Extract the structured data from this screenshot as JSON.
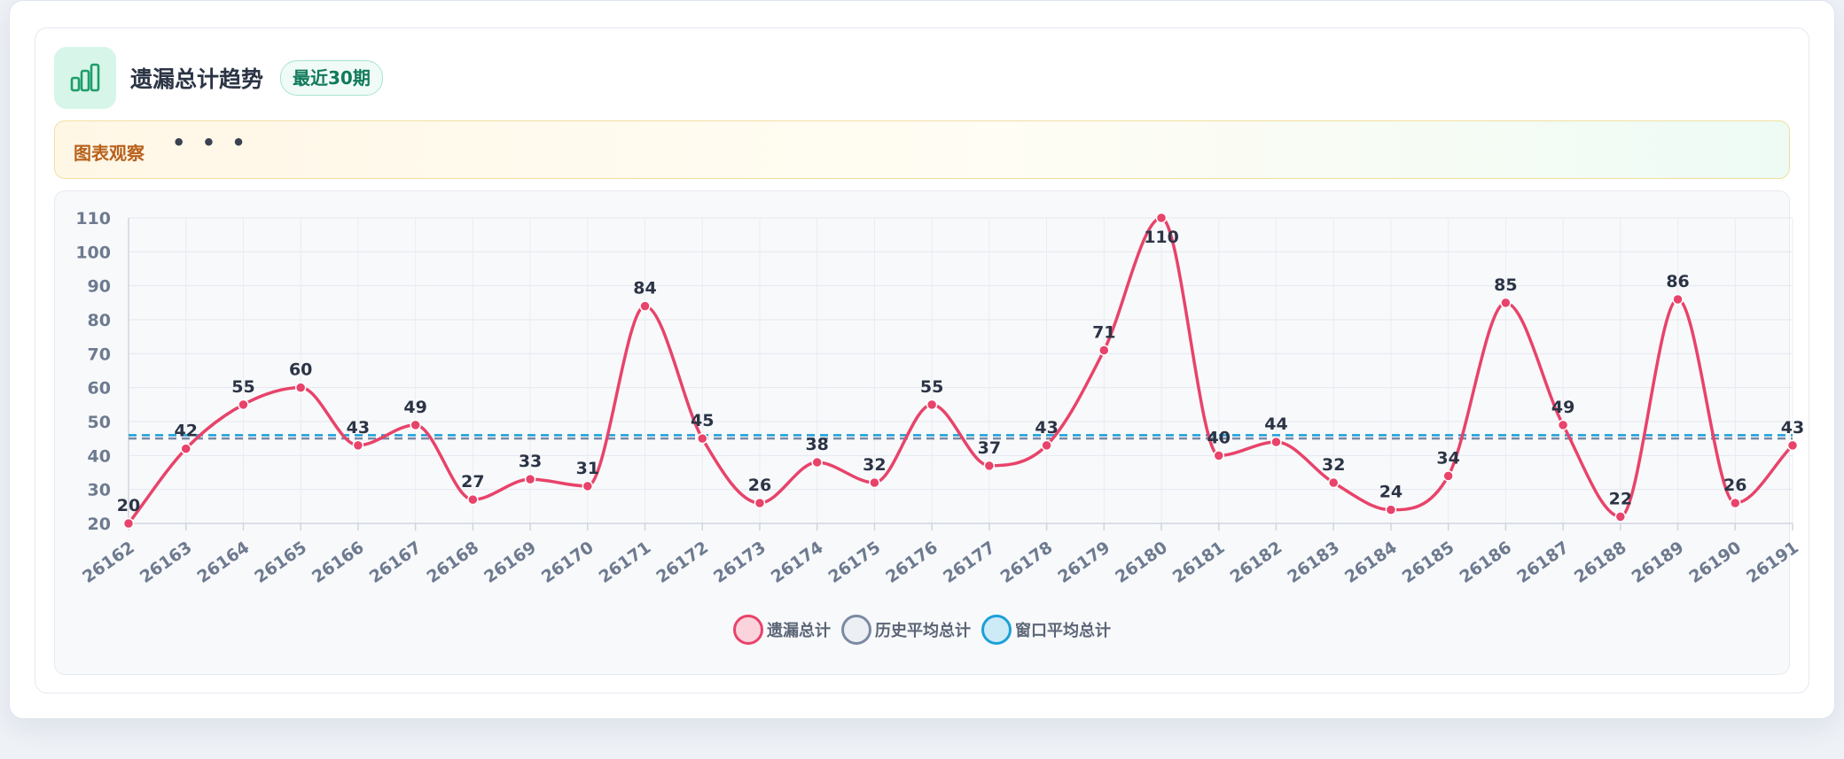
{
  "header": {
    "title": "遗漏总计趋势",
    "badge": "最近30期",
    "icon": "bar-chart-icon"
  },
  "notice": {
    "title": "图表观察",
    "dots": "• • •"
  },
  "colors": {
    "series": "#e8436a",
    "history_avg": "#7b8aa3",
    "window_avg": "#1ba0d8",
    "icon": "#1f9d6b"
  },
  "chart_data": {
    "type": "line",
    "title": "",
    "xlabel": "",
    "ylabel": "",
    "ylim": [
      20,
      110
    ],
    "yticks": [
      20,
      30,
      40,
      50,
      60,
      70,
      80,
      90,
      100,
      110
    ],
    "grid": true,
    "legend_placement": "bottom-center",
    "categories": [
      "26162",
      "26163",
      "26164",
      "26165",
      "26166",
      "26167",
      "26168",
      "26169",
      "26170",
      "26171",
      "26172",
      "26173",
      "26174",
      "26175",
      "26176",
      "26177",
      "26178",
      "26179",
      "26180",
      "26181",
      "26182",
      "26183",
      "26184",
      "26185",
      "26186",
      "26187",
      "26188",
      "26189",
      "26190",
      "26191"
    ],
    "series": [
      {
        "name": "遗漏总计",
        "values": [
          20,
          42,
          55,
          60,
          43,
          49,
          27,
          33,
          31,
          84,
          45,
          26,
          38,
          32,
          55,
          37,
          43,
          71,
          110,
          40,
          44,
          32,
          24,
          34,
          85,
          49,
          22,
          86,
          26,
          43
        ]
      },
      {
        "name": "历史平均总计",
        "value": 45
      },
      {
        "name": "窗口平均总计",
        "value": 46
      }
    ]
  }
}
